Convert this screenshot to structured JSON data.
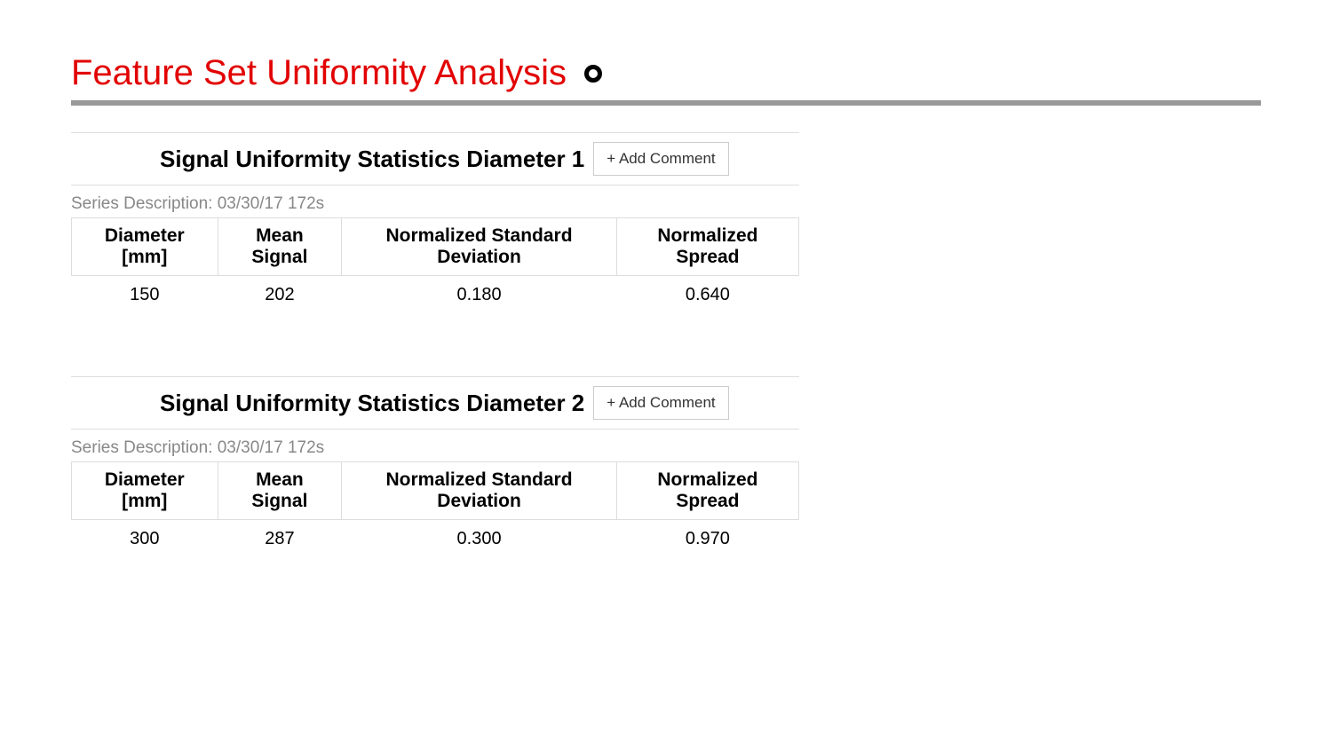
{
  "page": {
    "title": "Feature Set Uniformity Analysis",
    "title_color": "#e20000",
    "divider_color": "#999999"
  },
  "sections": [
    {
      "title": "Signal Uniformity Statistics Diameter 1",
      "add_comment_label": "+ Add Comment",
      "series_description": "Series Description: 03/30/17 172s",
      "table": {
        "columns": [
          "Diameter [mm]",
          "Mean Signal",
          "Normalized Standard Deviation",
          "Normalized Spread"
        ],
        "rows": [
          [
            "150",
            "202",
            "0.180",
            "0.640"
          ]
        ]
      }
    },
    {
      "title": "Signal Uniformity Statistics Diameter 2",
      "add_comment_label": "+ Add Comment",
      "series_description": "Series Description: 03/30/17 172s",
      "table": {
        "columns": [
          "Diameter [mm]",
          "Mean Signal",
          "Normalized Standard Deviation",
          "Normalized Spread"
        ],
        "rows": [
          [
            "300",
            "287",
            "0.300",
            "0.970"
          ]
        ]
      }
    }
  ],
  "styling": {
    "background_color": "#ffffff",
    "text_color": "#000000",
    "muted_text_color": "#888888",
    "border_color": "#dddddd",
    "button_border_color": "#cccccc",
    "title_fontsize": 40,
    "section_title_fontsize": 26,
    "table_header_fontsize": 21,
    "table_cell_fontsize": 20
  }
}
